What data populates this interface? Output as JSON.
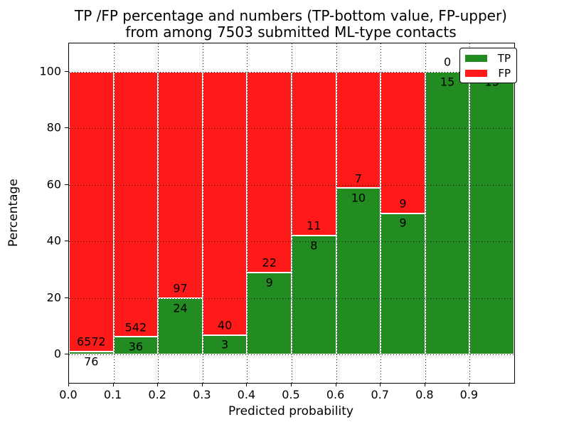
{
  "title": {
    "line1": "TP /FP percentage and numbers (TP-bottom value, FP-upper)",
    "line2": "from among 7503 submitted ML-type contacts"
  },
  "chart_data": {
    "type": "bar",
    "stacked": true,
    "normalized_to_percent": true,
    "title": "TP /FP percentage and numbers (TP-bottom value, FP-upper) from among 7503 submitted ML-type contacts",
    "xlabel": "Predicted probability",
    "ylabel": "Percentage",
    "bin_edges": [
      0.0,
      0.1,
      0.2,
      0.3,
      0.4,
      0.5,
      0.6,
      0.7,
      0.8,
      0.9,
      1.0
    ],
    "categories": [
      "0.0-0.1",
      "0.1-0.2",
      "0.2-0.3",
      "0.3-0.4",
      "0.4-0.5",
      "0.5-0.6",
      "0.6-0.7",
      "0.7-0.8",
      "0.8-0.9",
      "0.9-1.0"
    ],
    "series": [
      {
        "name": "TP",
        "color": "#228B22",
        "values": [
          76,
          36,
          24,
          3,
          9,
          8,
          10,
          9,
          15,
          13
        ]
      },
      {
        "name": "FP",
        "color": "#FF1A1A",
        "values": [
          6572,
          542,
          97,
          40,
          22,
          11,
          7,
          9,
          0,
          0
        ]
      }
    ],
    "x_ticks": [
      "0.0",
      "0.1",
      "0.2",
      "0.3",
      "0.4",
      "0.5",
      "0.6",
      "0.7",
      "0.8",
      "0.9"
    ],
    "y_ticks": [
      0,
      20,
      40,
      60,
      80,
      100
    ],
    "xlim": [
      0.0,
      1.0
    ],
    "ylim": [
      -10,
      110
    ],
    "grid": true,
    "grid_style": "dotted",
    "legend": {
      "position": "upper-right",
      "items": [
        {
          "label": "TP",
          "color": "#228B22"
        },
        {
          "label": "FP",
          "color": "#FF1A1A"
        }
      ]
    }
  }
}
